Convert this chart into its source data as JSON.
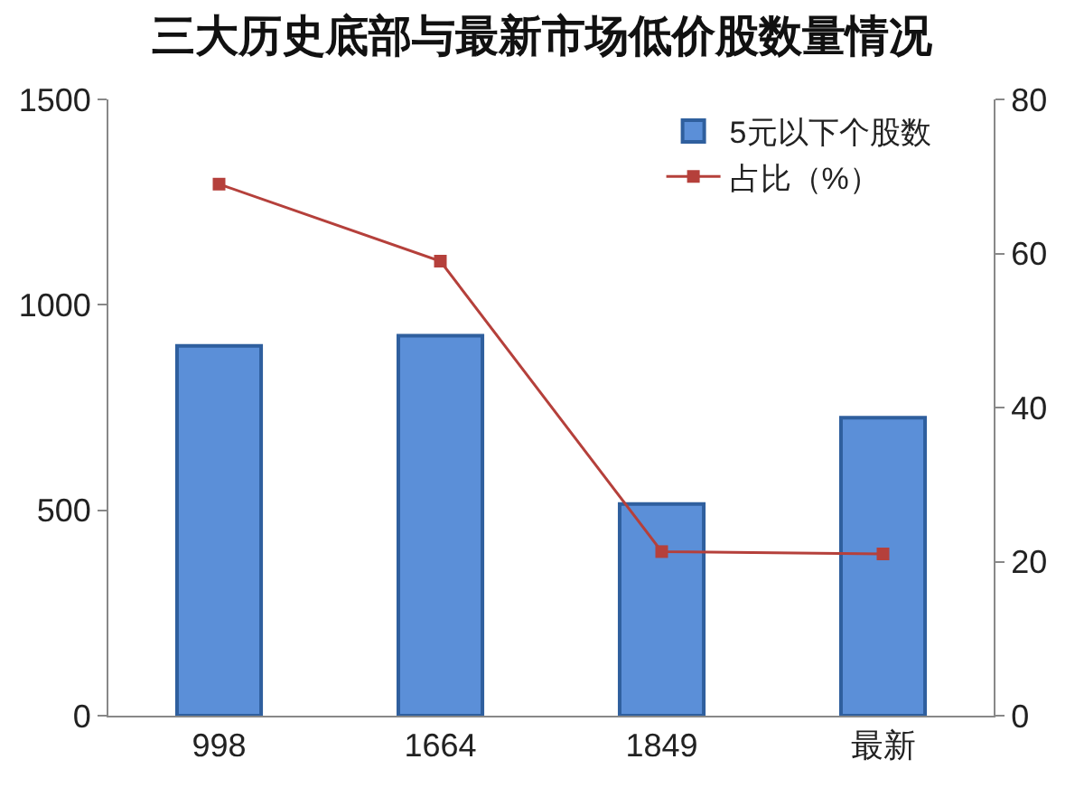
{
  "chart_data": {
    "type": "bar",
    "title": "三大历史底部与最新市场低价股数量情况",
    "categories": [
      "998",
      "1664",
      "1849",
      "最新"
    ],
    "series": [
      {
        "name": "5元以下个股数",
        "color": "#5b8fd8",
        "values": [
          900,
          925,
          515,
          725
        ]
      },
      {
        "name": "占比（%）",
        "type": "line",
        "axis": "y2",
        "color": "#b5403b",
        "values": [
          69,
          59,
          21.3,
          21
        ]
      }
    ],
    "ylim": [
      0,
      1500
    ],
    "yticks": [
      0,
      500,
      1000,
      1500
    ],
    "y2lim": [
      0,
      80
    ],
    "y2ticks": [
      0,
      20,
      40,
      60,
      80
    ],
    "grid": false,
    "legend": "top right",
    "marker": "square",
    "line_style": "solid"
  }
}
